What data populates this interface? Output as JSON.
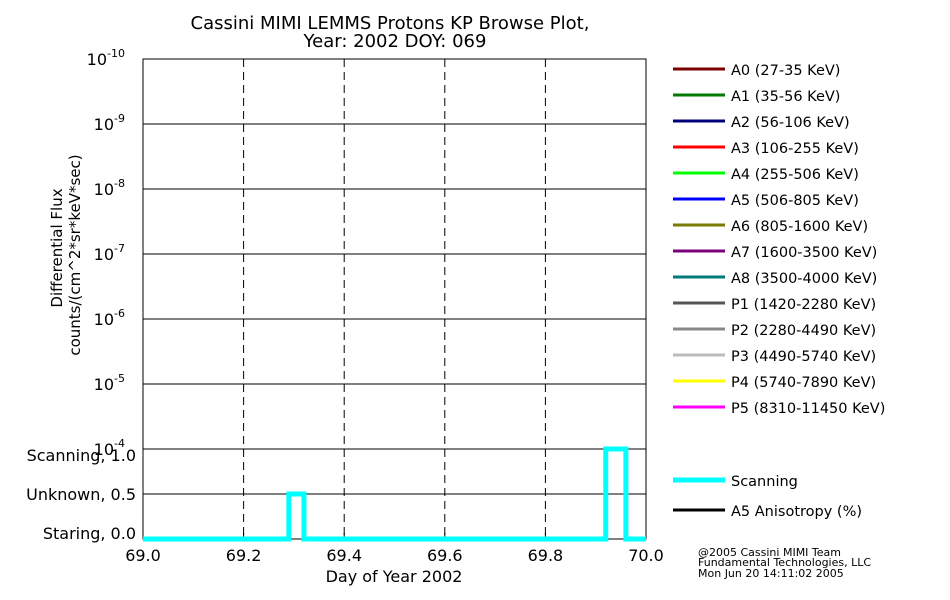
{
  "chart_data": [
    {
      "type": "line",
      "title": "Cassini MIMI LEMMS Protons KP Browse Plot,",
      "subtitle": "Year: 2002 DOY: 069",
      "xlabel": "",
      "ylabel": "Differential Flux",
      "ylabel2": "counts/(cm^2*sr*keV*sec)",
      "yscale": "log",
      "ylim": [
        0.0001,
        1e-10
      ],
      "xlim": [
        69.0,
        70.0
      ],
      "y_ticks": [
        {
          "value": 1e-10,
          "base": "10",
          "exp": "-10"
        },
        {
          "value": 1e-09,
          "base": "10",
          "exp": "-9"
        },
        {
          "value": 1e-08,
          "base": "10",
          "exp": "-8"
        },
        {
          "value": 1e-07,
          "base": "10",
          "exp": "-7"
        },
        {
          "value": 1e-06,
          "base": "10",
          "exp": "-6"
        },
        {
          "value": 1e-05,
          "base": "10",
          "exp": "-5"
        },
        {
          "value": 0.0001,
          "base": "10",
          "exp": "-4"
        }
      ],
      "grid": true,
      "legend_position": "right",
      "series": [
        {
          "name": "A0 (27-35 KeV)",
          "color": "#7a0000",
          "x": [],
          "y": []
        },
        {
          "name": "A1 (35-56 KeV)",
          "color": "#007a00",
          "x": [],
          "y": []
        },
        {
          "name": "A2 (56-106 KeV)",
          "color": "#00007a",
          "x": [],
          "y": []
        },
        {
          "name": "A3 (106-255 KeV)",
          "color": "#ff0000",
          "x": [],
          "y": []
        },
        {
          "name": "A4 (255-506 KeV)",
          "color": "#00ff00",
          "x": [],
          "y": []
        },
        {
          "name": "A5 (506-805 KeV)",
          "color": "#0000ff",
          "x": [],
          "y": []
        },
        {
          "name": "A6 (805-1600 KeV)",
          "color": "#7a7a00",
          "x": [],
          "y": []
        },
        {
          "name": "A7 (1600-3500 KeV)",
          "color": "#7a007a",
          "x": [],
          "y": []
        },
        {
          "name": "A8 (3500-4000 KeV)",
          "color": "#007a7a",
          "x": [],
          "y": []
        },
        {
          "name": "P1 (1420-2280 KeV)",
          "color": "#555555",
          "x": [],
          "y": []
        },
        {
          "name": "P2 (2280-4490 KeV)",
          "color": "#888888",
          "x": [],
          "y": []
        },
        {
          "name": "P3 (4490-5740 KeV)",
          "color": "#bbbbbb",
          "x": [],
          "y": []
        },
        {
          "name": "P4 (5740-7890 KeV)",
          "color": "#ffff00",
          "x": [],
          "y": []
        },
        {
          "name": "P5 (8310-11450 KeV)",
          "color": "#ff00ff",
          "x": [],
          "y": []
        }
      ]
    },
    {
      "type": "line",
      "xlabel": "Day of Year 2002",
      "xlim": [
        69.0,
        70.0
      ],
      "x_ticks": [
        "69.0",
        "69.2",
        "69.4",
        "69.6",
        "69.8",
        "70.0"
      ],
      "x_tick_values": [
        69.0,
        69.2,
        69.4,
        69.6,
        69.8,
        70.0
      ],
      "ylim": [
        0.0,
        1.0
      ],
      "y_ticks": [
        {
          "value": 1.0,
          "label": "Scanning, 1.0"
        },
        {
          "value": 0.5,
          "label": "Unknown, 0.5"
        },
        {
          "value": 0.0,
          "label": "Staring, 0.0"
        }
      ],
      "grid": true,
      "legend_position": "right",
      "series": [
        {
          "name": "Scanning",
          "color": "#00ffff",
          "x": [
            69.0,
            69.29,
            69.29,
            69.32,
            69.32,
            69.92,
            69.92,
            69.96,
            69.96,
            70.0
          ],
          "y": [
            0.0,
            0.0,
            0.5,
            0.5,
            0.0,
            0.0,
            1.0,
            1.0,
            0.0,
            0.0
          ]
        },
        {
          "name": "A5 Anisotropy (%)",
          "color": "#000000",
          "x": [],
          "y": []
        }
      ]
    }
  ],
  "credits": [
    "@2005 Cassini MIMI Team",
    "Fundamental Technologies, LLC",
    "Mon Jun 20 14:11:02 2005"
  ]
}
